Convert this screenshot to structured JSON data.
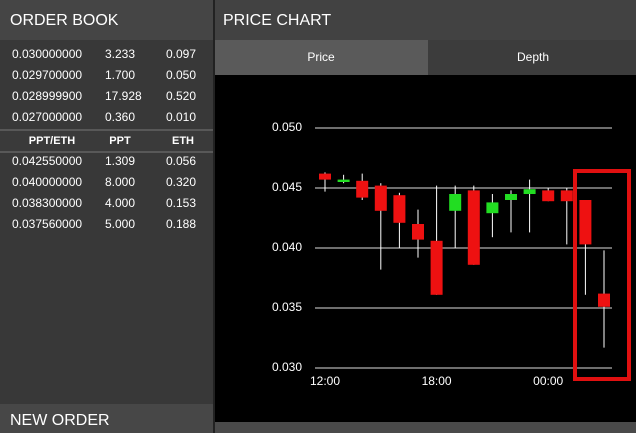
{
  "order_book": {
    "title": "ORDER BOOK",
    "asks": [
      [
        "0.030000000",
        "3.233",
        "0.097"
      ],
      [
        "0.029700000",
        "1.700",
        "0.050"
      ],
      [
        "0.028999900",
        "17.928",
        "0.520"
      ],
      [
        "0.027000000",
        "0.360",
        "0.010"
      ]
    ],
    "header": [
      "PPT/ETH",
      "PPT",
      "ETH"
    ],
    "bids": [
      [
        "0.042550000",
        "1.309",
        "0.056"
      ],
      [
        "0.040000000",
        "8.000",
        "0.320"
      ],
      [
        "0.038300000",
        "4.000",
        "0.153"
      ],
      [
        "0.037560000",
        "5.000",
        "0.188"
      ]
    ]
  },
  "new_order": {
    "title": "NEW ORDER"
  },
  "price_chart": {
    "title": "PRICE CHART",
    "tabs": [
      "Price",
      "Depth"
    ],
    "chart_data": {
      "type": "candlestick",
      "categories": [
        "12:00",
        null,
        null,
        null,
        null,
        null,
        "18:00",
        null,
        null,
        null,
        null,
        null,
        "00:00",
        null,
        null,
        null
      ],
      "open": [
        0.0462,
        0.0455,
        0.0456,
        0.0452,
        0.0444,
        0.042,
        0.0406,
        0.0431,
        0.0448,
        0.0429,
        0.044,
        0.0445,
        0.0448,
        0.0448,
        0.044,
        0.0362
      ],
      "high": [
        0.0463,
        0.0461,
        0.0462,
        0.0454,
        0.0446,
        0.0432,
        0.0452,
        0.0452,
        0.0452,
        0.0445,
        0.0448,
        0.0457,
        0.045,
        0.045,
        0.044,
        0.0398
      ],
      "low": [
        0.0447,
        0.0454,
        0.044,
        0.0382,
        0.04,
        0.0392,
        0.0361,
        0.04,
        0.0386,
        0.0409,
        0.0413,
        0.0413,
        0.0439,
        0.0403,
        0.0361,
        0.0317
      ],
      "close": [
        0.0457,
        0.0457,
        0.0442,
        0.0431,
        0.0421,
        0.0407,
        0.0361,
        0.0445,
        0.0386,
        0.0438,
        0.0445,
        0.0449,
        0.0439,
        0.0439,
        0.0403,
        0.0351
      ],
      "up_color": "#22dd22",
      "down_color": "#ee1111",
      "ylim": [
        0.03,
        0.05
      ],
      "yticks": [
        {
          "value": 0.03,
          "label": "0.030"
        },
        {
          "value": 0.035,
          "label": "0.035"
        },
        {
          "value": 0.04,
          "label": "0.040"
        },
        {
          "value": 0.045,
          "label": "0.045"
        },
        {
          "value": 0.05,
          "label": "0.050"
        }
      ],
      "grid": true
    }
  }
}
